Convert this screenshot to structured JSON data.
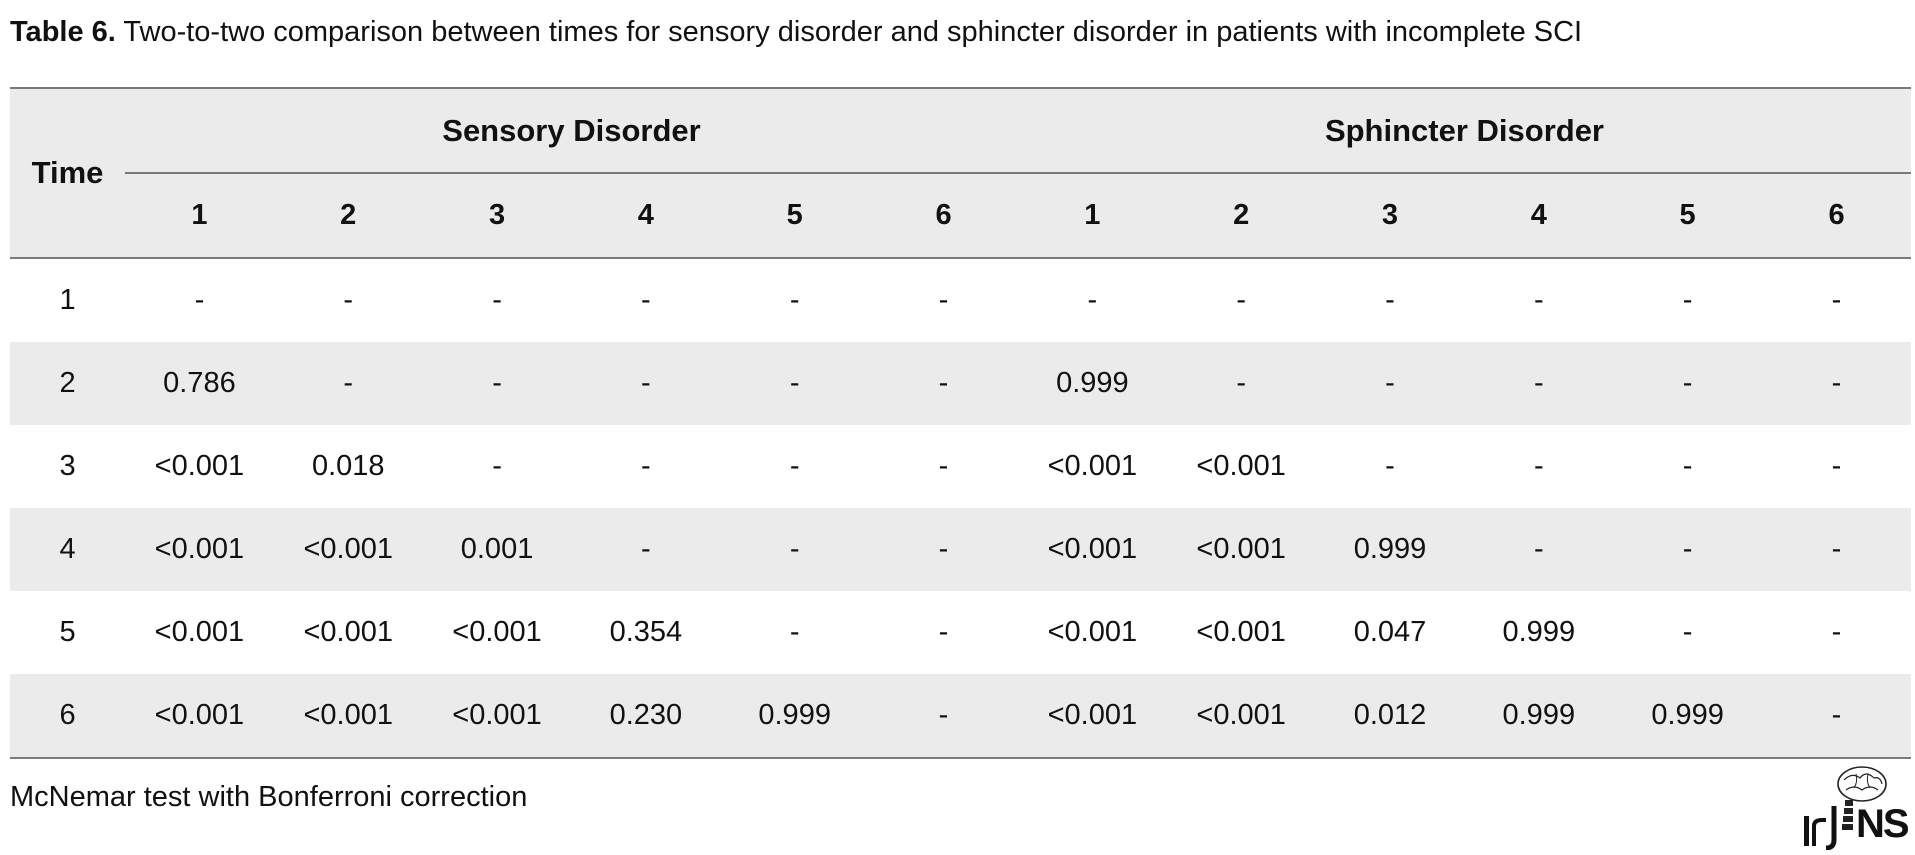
{
  "caption": {
    "label": "Table 6.",
    "text": "Two-to-two comparison between times for sensory disorder and sphincter disorder in patients with incomplete SCI"
  },
  "table": {
    "row_header": "Time",
    "groups": [
      "Sensory Disorder",
      "Sphincter Disorder"
    ],
    "subcolumns": [
      "1",
      "2",
      "3",
      "4",
      "5",
      "6",
      "1",
      "2",
      "3",
      "4",
      "5",
      "6"
    ],
    "rows": [
      {
        "time": "1",
        "cells": [
          "-",
          "-",
          "-",
          "-",
          "-",
          "-",
          "-",
          "-",
          "-",
          "-",
          "-",
          "-"
        ]
      },
      {
        "time": "2",
        "cells": [
          "0.786",
          "-",
          "-",
          "-",
          "-",
          "-",
          "0.999",
          "-",
          "-",
          "-",
          "-",
          "-"
        ]
      },
      {
        "time": "3",
        "cells": [
          "<0.001",
          "0.018",
          "-",
          "-",
          "-",
          "-",
          "<0.001",
          "<0.001",
          "-",
          "-",
          "-",
          "-"
        ]
      },
      {
        "time": "4",
        "cells": [
          "<0.001",
          "<0.001",
          "0.001",
          "-",
          "-",
          "-",
          "<0.001",
          "<0.001",
          "0.999",
          "-",
          "-",
          "-"
        ]
      },
      {
        "time": "5",
        "cells": [
          "<0.001",
          "<0.001",
          "<0.001",
          "0.354",
          "-",
          "-",
          "<0.001",
          "<0.001",
          "0.047",
          "0.999",
          "-",
          "-"
        ]
      },
      {
        "time": "6",
        "cells": [
          "<0.001",
          "<0.001",
          "<0.001",
          "0.230",
          "0.999",
          "-",
          "<0.001",
          "<0.001",
          "0.012",
          "0.999",
          "0.999",
          "-"
        ]
      }
    ]
  },
  "footnote": "McNemar test with Bonferroni correction",
  "logo": {
    "text": "IrJNS",
    "icon": "brain-spine-logo-icon"
  },
  "colors": {
    "shaded_row": "#ebebeb",
    "rule": "#7a7a7a",
    "text": "#111111"
  }
}
